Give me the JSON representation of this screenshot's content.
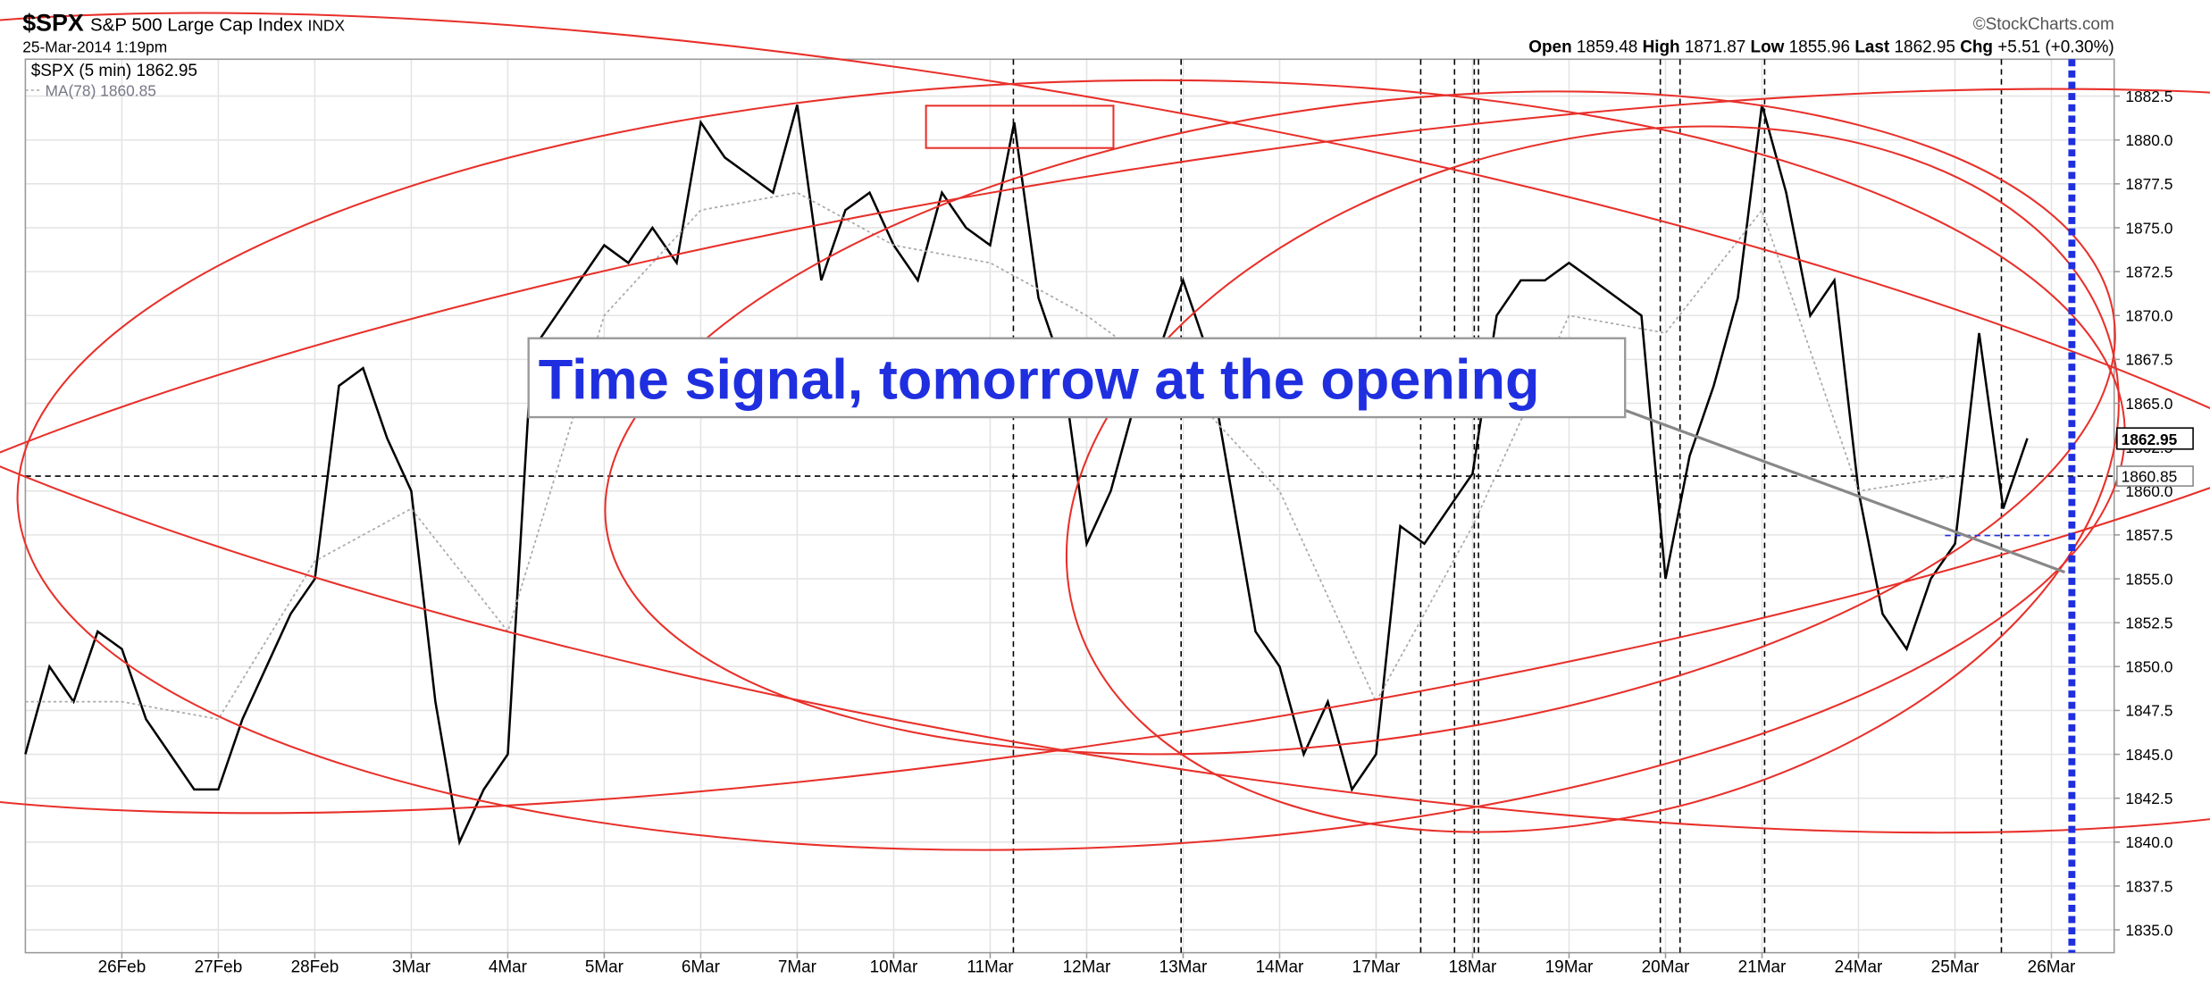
{
  "chart_data": {
    "type": "line",
    "header": {
      "symbol": "$SPX",
      "name": "S&P 500 Large Cap Index",
      "exchange": "INDX",
      "date": "25-Mar-2014 1:19pm",
      "source": "©StockCharts.com",
      "open_label": "Open",
      "open": 1859.48,
      "high_label": "High",
      "high": 1871.87,
      "low_label": "Low",
      "low": 1855.96,
      "last_label": "Last",
      "last": 1862.95,
      "chg_label": "Chg",
      "chg": "+5.51 (+0.30%)"
    },
    "annotation": "Time signal, tomorrow at the opening",
    "ma_last": 1860.85,
    "series": [
      {
        "name": "$SPX (5 min)",
        "color": "#000000",
        "x": [
          -1,
          -0.75,
          -0.5,
          -0.25,
          0,
          0.25,
          0.5,
          0.75,
          1,
          1.25,
          1.5,
          1.75,
          2,
          2.25,
          2.5,
          2.75,
          3,
          3.25,
          3.5,
          3.75,
          4,
          4.25,
          4.5,
          4.75,
          5,
          5.25,
          5.5,
          5.75,
          6,
          6.25,
          6.5,
          6.75,
          7,
          7.25,
          7.5,
          7.75,
          8,
          8.25,
          8.5,
          8.75,
          9,
          9.25,
          9.5,
          9.75,
          10,
          10.25,
          10.5,
          10.75,
          11,
          11.25,
          11.5,
          11.75,
          12,
          12.25,
          12.5,
          12.75,
          13,
          13.25,
          13.5,
          13.75,
          14,
          14.25,
          14.5,
          14.75,
          15,
          15.25,
          15.5,
          15.75,
          16,
          16.25,
          16.5,
          16.75,
          17,
          17.25,
          17.5,
          17.75,
          18,
          18.25,
          18.5,
          18.75,
          19,
          19.25,
          19.5,
          19.75
        ],
        "values": [
          1845,
          1850,
          1848,
          1852,
          1851,
          1847,
          1845,
          1843,
          1843,
          1847,
          1850,
          1853,
          1855,
          1866,
          1867,
          1863,
          1860,
          1848,
          1840,
          1843,
          1845,
          1868,
          1870,
          1872,
          1874,
          1873,
          1875,
          1873,
          1881,
          1879,
          1878,
          1877,
          1882,
          1872,
          1876,
          1877,
          1874,
          1872,
          1877,
          1875,
          1874,
          1881,
          1871,
          1867,
          1857,
          1860,
          1865,
          1868,
          1872,
          1868,
          1860,
          1852,
          1850,
          1845,
          1848,
          1843,
          1845,
          1858,
          1857,
          1859,
          1861,
          1870,
          1872,
          1872,
          1873,
          1872,
          1871,
          1870,
          1855,
          1862,
          1866,
          1871,
          1882,
          1877,
          1870,
          1872,
          1860,
          1853,
          1851,
          1855,
          1857,
          1869,
          1859,
          1863
        ]
      },
      {
        "name": "MA(78)",
        "color": "#aaaaaa",
        "x": [
          -1,
          0,
          1,
          2,
          3,
          4,
          5,
          6,
          7,
          8,
          9,
          10,
          11,
          12,
          13,
          14,
          15,
          16,
          17,
          18,
          19
        ],
        "values": [
          1848,
          1848,
          1847,
          1856,
          1859,
          1852,
          1870,
          1876,
          1877,
          1874,
          1873,
          1870,
          1866,
          1860,
          1848,
          1858,
          1870,
          1869,
          1876,
          1860,
          1860.85
        ]
      }
    ],
    "xlim": [
      -1,
      20.65
    ],
    "xticks": [
      {
        "value": 0,
        "label": "26Feb"
      },
      {
        "value": 1,
        "label": "27Feb"
      },
      {
        "value": 2,
        "label": "28Feb"
      },
      {
        "value": 3,
        "label": "3Mar"
      },
      {
        "value": 4,
        "label": "4Mar"
      },
      {
        "value": 5,
        "label": "5Mar"
      },
      {
        "value": 6,
        "label": "6Mar"
      },
      {
        "value": 7,
        "label": "7Mar"
      },
      {
        "value": 8,
        "label": "10Mar"
      },
      {
        "value": 9,
        "label": "11Mar"
      },
      {
        "value": 10,
        "label": "12Mar"
      },
      {
        "value": 11,
        "label": "13Mar"
      },
      {
        "value": 12,
        "label": "14Mar"
      },
      {
        "value": 13,
        "label": "17Mar"
      },
      {
        "value": 14,
        "label": "18Mar"
      },
      {
        "value": 15,
        "label": "19Mar"
      },
      {
        "value": 16,
        "label": "20Mar"
      },
      {
        "value": 17,
        "label": "21Mar"
      },
      {
        "value": 18,
        "label": "24Mar"
      },
      {
        "value": 19,
        "label": "25Mar"
      },
      {
        "value": 20,
        "label": "26Mar"
      }
    ],
    "ylim": [
      1833.7,
      1884.6
    ],
    "yticks": [
      {
        "value": 1835,
        "label": "1835.0"
      },
      {
        "value": 1837.5,
        "label": "1837.5"
      },
      {
        "value": 1840,
        "label": "1840.0"
      },
      {
        "value": 1842.5,
        "label": "1842.5"
      },
      {
        "value": 1845,
        "label": "1845.0"
      },
      {
        "value": 1847.5,
        "label": "1847.5"
      },
      {
        "value": 1850,
        "label": "1850.0"
      },
      {
        "value": 1852.5,
        "label": "1852.5"
      },
      {
        "value": 1855,
        "label": "1855.0"
      },
      {
        "value": 1857.5,
        "label": "1857.5"
      },
      {
        "value": 1860,
        "label": "1860.0"
      },
      {
        "value": 1862.5,
        "label": "1862.5"
      },
      {
        "value": 1865,
        "label": "1865.0"
      },
      {
        "value": 1867.5,
        "label": "1867.5"
      },
      {
        "value": 1870,
        "label": "1870.0"
      },
      {
        "value": 1872.5,
        "label": "1872.5"
      },
      {
        "value": 1875,
        "label": "1875.0"
      },
      {
        "value": 1877.5,
        "label": "1877.5"
      },
      {
        "value": 1880,
        "label": "1880.0"
      },
      {
        "value": 1882.5,
        "label": "1882.5"
      }
    ],
    "grid": true
  }
}
